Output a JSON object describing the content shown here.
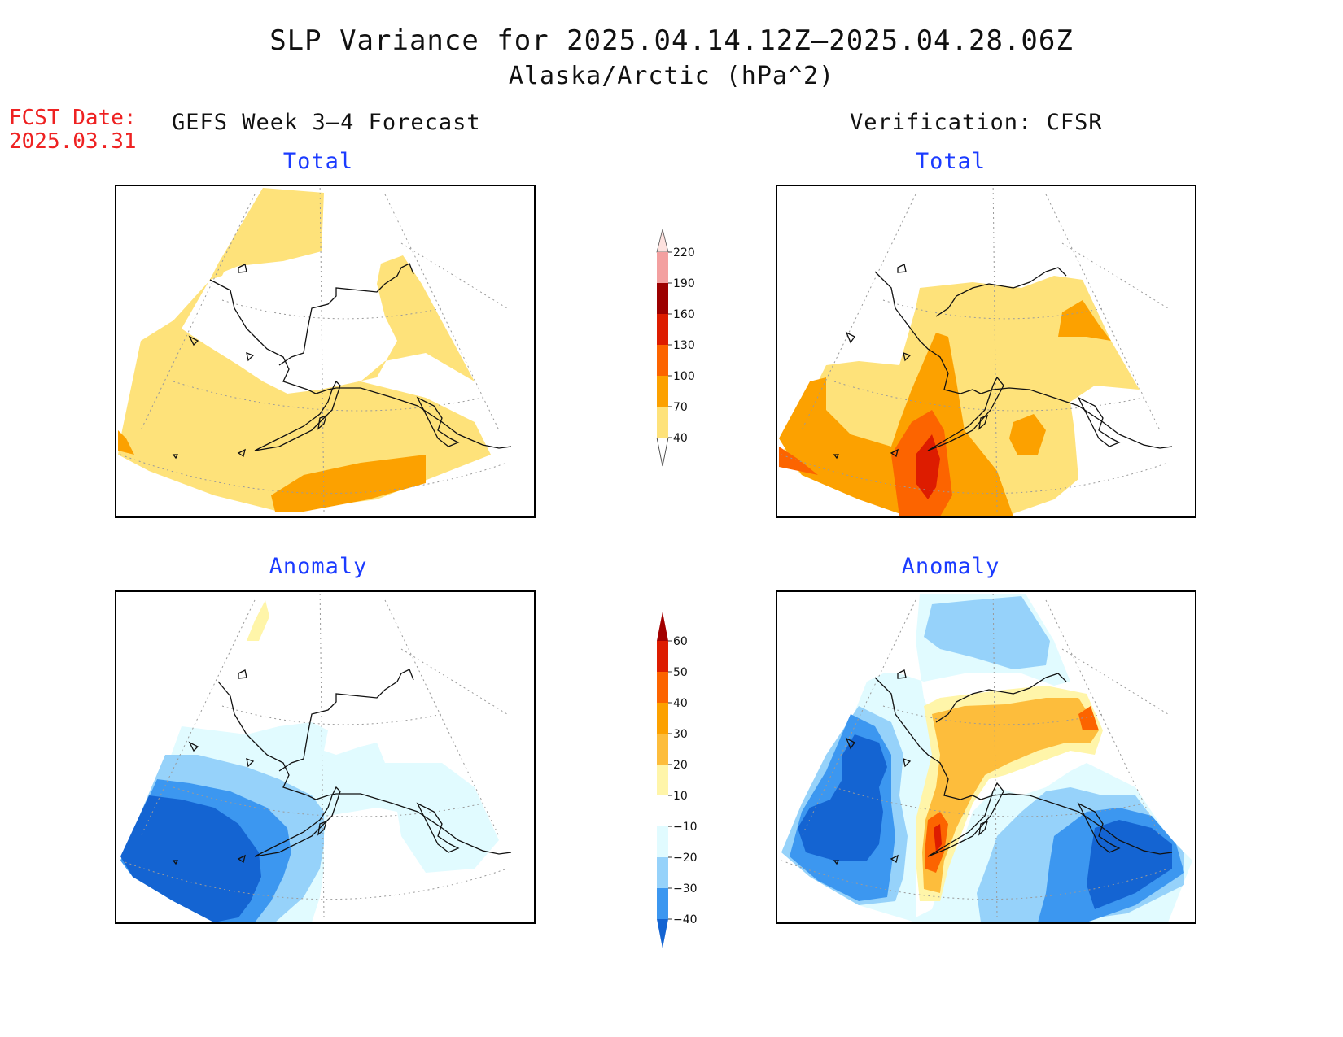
{
  "title": "SLP Variance for 2025.04.14.12Z–2025.04.28.06Z",
  "subtitle": "Alaska/Arctic (hPa^2)",
  "fcst_label": "FCST Date:",
  "fcst_date": "2025.03.31",
  "left_column_title": "GEFS Week 3–4 Forecast",
  "right_column_title": "Verification: CFSR",
  "panels": {
    "forecast_total": "Total",
    "verification_total": "Total",
    "forecast_anomaly": "Anomaly",
    "verification_anomaly": "Anomaly"
  },
  "colorbar_total": {
    "labels": [
      "220",
      "190",
      "160",
      "130",
      "100",
      "70",
      "40"
    ],
    "colors": [
      "#fde1de",
      "#f3a0a0",
      "#9c0000",
      "#dd1c00",
      "#fc6400",
      "#fca100",
      "#fee27a"
    ]
  },
  "colorbar_anomaly": {
    "labels": [
      "60",
      "50",
      "40",
      "30",
      "20",
      "10",
      "−10",
      "−20",
      "−30",
      "−40"
    ],
    "colors": [
      "#a30000",
      "#dd1c00",
      "#fc6400",
      "#fca100",
      "#fdbd3c",
      "#fff5a9",
      "#ffffff",
      "#e1fbff",
      "#96d2fa",
      "#3c97f0",
      "#1464d2"
    ]
  },
  "palette": {
    "light_yellow": "#fee27a",
    "orange": "#fca100",
    "dark_orange": "#fc6400",
    "red": "#dd1c00",
    "pale_cyan": "#e1fbff",
    "light_blue": "#96d2fa",
    "mid_blue": "#3c97f0",
    "dark_blue": "#1464d2",
    "pale_yellow": "#fff5a9",
    "light_orange": "#fdbd3c"
  }
}
